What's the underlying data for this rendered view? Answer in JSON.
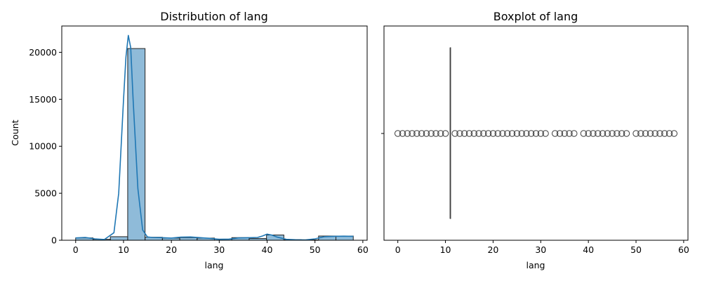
{
  "chart_data": [
    {
      "type": "bar",
      "title": "Distribution of lang",
      "xlabel": "lang",
      "ylabel": "Count",
      "xlim": [
        -2.9,
        60.9
      ],
      "ylim": [
        0,
        22800
      ],
      "xticks": [
        0,
        10,
        20,
        30,
        40,
        50,
        60
      ],
      "yticks": [
        0,
        5000,
        10000,
        15000,
        20000
      ],
      "grid": false,
      "bin_edges": [
        0,
        3.625,
        7.25,
        10.875,
        14.5,
        18.125,
        21.75,
        25.375,
        29.0,
        32.625,
        36.25,
        39.875,
        43.5,
        47.125,
        50.75,
        54.375,
        58.0
      ],
      "values": [
        250,
        100,
        380,
        20400,
        320,
        230,
        280,
        230,
        120,
        280,
        190,
        560,
        60,
        40,
        450,
        450
      ],
      "kde": {
        "x": [
          0,
          2,
          4,
          6,
          8,
          9,
          10,
          10.5,
          11,
          11.5,
          12,
          13,
          14,
          15,
          16,
          18,
          20,
          22,
          24,
          26,
          28,
          30,
          32,
          34,
          36,
          38,
          39,
          40,
          41,
          42,
          44,
          46,
          48,
          50,
          52,
          54,
          56,
          58
        ],
        "y": [
          250,
          300,
          150,
          80,
          800,
          5000,
          15000,
          19500,
          21800,
          20500,
          15000,
          5500,
          1100,
          350,
          300,
          280,
          230,
          330,
          350,
          280,
          200,
          100,
          120,
          250,
          270,
          300,
          450,
          650,
          550,
          350,
          100,
          50,
          40,
          150,
          380,
          420,
          430,
          420
        ]
      }
    },
    {
      "type": "box",
      "title": "Boxplot of lang",
      "xlabel": "lang",
      "xlim": [
        -2.9,
        60.9
      ],
      "xticks": [
        0,
        10,
        20,
        30,
        40,
        50,
        60
      ],
      "grid": false,
      "median": 11,
      "q1": 11,
      "q3": 11,
      "outliers": [
        0,
        1,
        2,
        3,
        4,
        5,
        6,
        7,
        8,
        9,
        10,
        12,
        13,
        14,
        15,
        16,
        17,
        18,
        19,
        20,
        21,
        22,
        23,
        24,
        25,
        26,
        27,
        28,
        29,
        30,
        31,
        33,
        34,
        35,
        36,
        37,
        39,
        40,
        41,
        42,
        43,
        44,
        45,
        46,
        47,
        48,
        50,
        51,
        52,
        53,
        54,
        55,
        56,
        57,
        58
      ]
    }
  ]
}
